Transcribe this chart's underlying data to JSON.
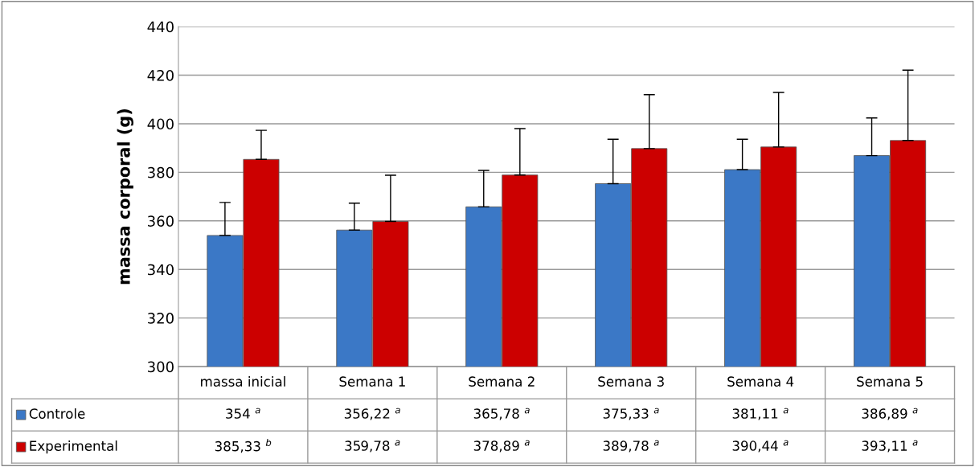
{
  "chart_data": {
    "type": "bar",
    "ylabel": "massa corporal (g)",
    "categories": [
      "massa inicial",
      "Semana 1",
      "Semana 2",
      "Semana 3",
      "Semana 4",
      "Semana 5"
    ],
    "series": [
      {
        "name": "Controle",
        "color": "#3b78c6",
        "values": [
          354,
          356.22,
          365.78,
          375.33,
          381.11,
          386.89
        ],
        "errors": [
          [
            354,
            367.6
          ],
          [
            356.22,
            367.3
          ],
          [
            365.78,
            380.8
          ],
          [
            375.33,
            393.6
          ],
          [
            381.11,
            393.6
          ],
          [
            386.89,
            402.4
          ]
        ],
        "value_labels": [
          "354 $^{a}$",
          "356,22 $^{a}$",
          "365,78 $^{a}$",
          "375,33 $^{a}$",
          "381,11 $^{a}$",
          "386,89 $^{a}$"
        ]
      },
      {
        "name": "Experimental",
        "color": "#cc0000",
        "values": [
          385.33,
          359.78,
          378.89,
          389.78,
          390.44,
          393.11
        ],
        "errors": [
          [
            385.33,
            397.3
          ],
          [
            359.78,
            378.8
          ],
          [
            378.89,
            398
          ],
          [
            389.78,
            412
          ],
          [
            390.44,
            412.9
          ],
          [
            393.11,
            422.1
          ]
        ],
        "value_labels": [
          "385,33 $^{b}$",
          "359,78 $^{a}$",
          "378,89 $^{a}$",
          "389,78 $^{a}$",
          "390,44 $^{a}$",
          "393,11 $^{a}$"
        ]
      }
    ],
    "ylim": [
      300,
      440
    ],
    "yticks": [
      300,
      320,
      340,
      360,
      380,
      400,
      420,
      440
    ],
    "grid": "y",
    "legend": "bottom"
  }
}
